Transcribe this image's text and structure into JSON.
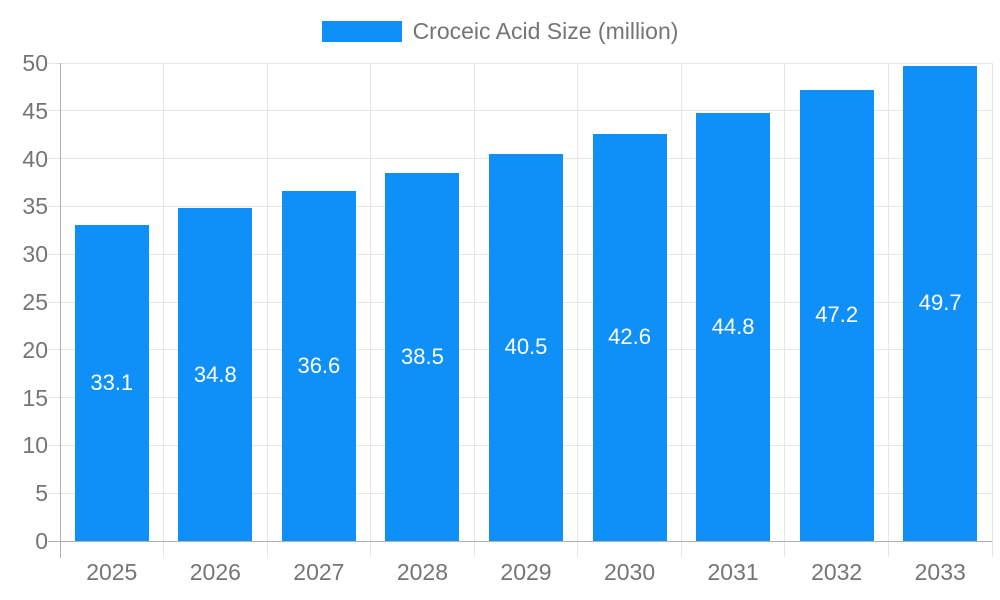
{
  "chart_data": {
    "type": "bar",
    "title": "Croceic Acid Size (million)",
    "categories": [
      "2025",
      "2026",
      "2027",
      "2028",
      "2029",
      "2030",
      "2031",
      "2032",
      "2033"
    ],
    "series": [
      {
        "name": "Croceic Acid Size (million)",
        "values": [
          33.1,
          34.8,
          36.6,
          38.5,
          40.5,
          42.6,
          44.8,
          47.2,
          49.7
        ]
      }
    ],
    "data_labels": [
      "33.1",
      "34.8",
      "36.6",
      "38.5",
      "40.5",
      "42.6",
      "44.8",
      "47.2",
      "49.7"
    ],
    "y_tick_labels": [
      "0",
      "5",
      "10",
      "15",
      "20",
      "25",
      "30",
      "35",
      "40",
      "45",
      "50"
    ],
    "xlabel": "",
    "ylabel": "",
    "ylim": [
      0,
      50
    ],
    "y_tick_step": 5,
    "grid": "both",
    "legend_position": "top-center",
    "colors": {
      "bar": "#0e90f8",
      "bar_label_text": "#ffffff",
      "axis_text": "#757575",
      "grid_line": "#e6e6e6",
      "axis_line": "#b0b0b0",
      "background": "#ffffff"
    }
  }
}
